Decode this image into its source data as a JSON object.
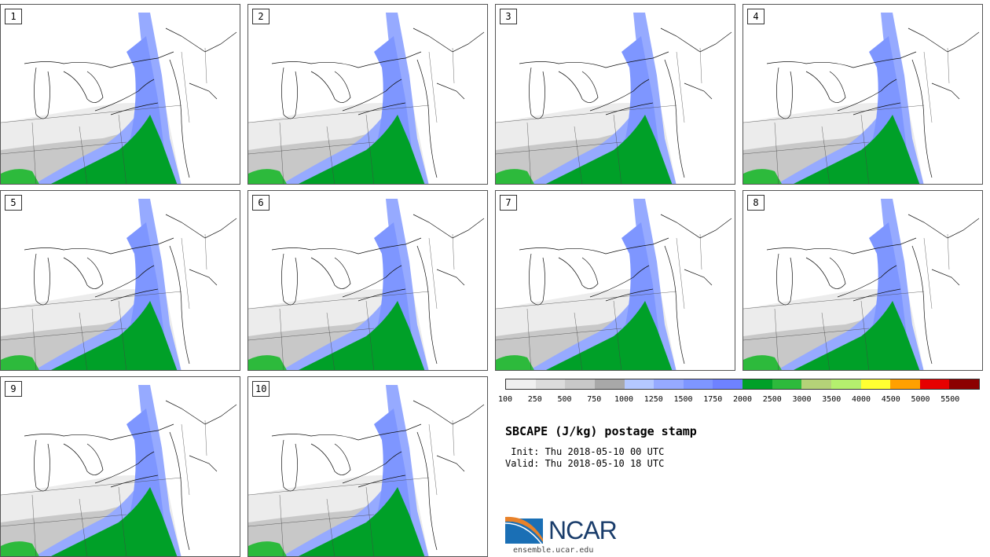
{
  "panels": [
    {
      "label": "1"
    },
    {
      "label": "2"
    },
    {
      "label": "3"
    },
    {
      "label": "4"
    },
    {
      "label": "5"
    },
    {
      "label": "6"
    },
    {
      "label": "7"
    },
    {
      "label": "8"
    },
    {
      "label": "9"
    },
    {
      "label": "10"
    }
  ],
  "colorbar": {
    "colors": [
      "#f0f0f0",
      "#dcdcdc",
      "#c8c8c8",
      "#a8a8a8",
      "#b4c8ff",
      "#96aaff",
      "#7e96ff",
      "#6e82ff",
      "#00a028",
      "#2dba3c",
      "#b4d278",
      "#b4f06e",
      "#ffff32",
      "#ffa000",
      "#e60000",
      "#8c0000"
    ],
    "ticks": [
      "100",
      "250",
      "500",
      "750",
      "1000",
      "1250",
      "1500",
      "1750",
      "2000",
      "2500",
      "3000",
      "3500",
      "4000",
      "4500",
      "5000",
      "5500"
    ]
  },
  "title": "SBCAPE (J/kg) postage stamp",
  "init": " Init: Thu 2018-05-10 00 UTC",
  "valid": "Valid: Thu 2018-05-10 18 UTC",
  "logo": {
    "text": "NCAR",
    "colors": {
      "blue": "#1a6fb5",
      "orange": "#e8822a",
      "navy": "#1a3d6b"
    }
  },
  "site": "ensemble.ucar.edu"
}
